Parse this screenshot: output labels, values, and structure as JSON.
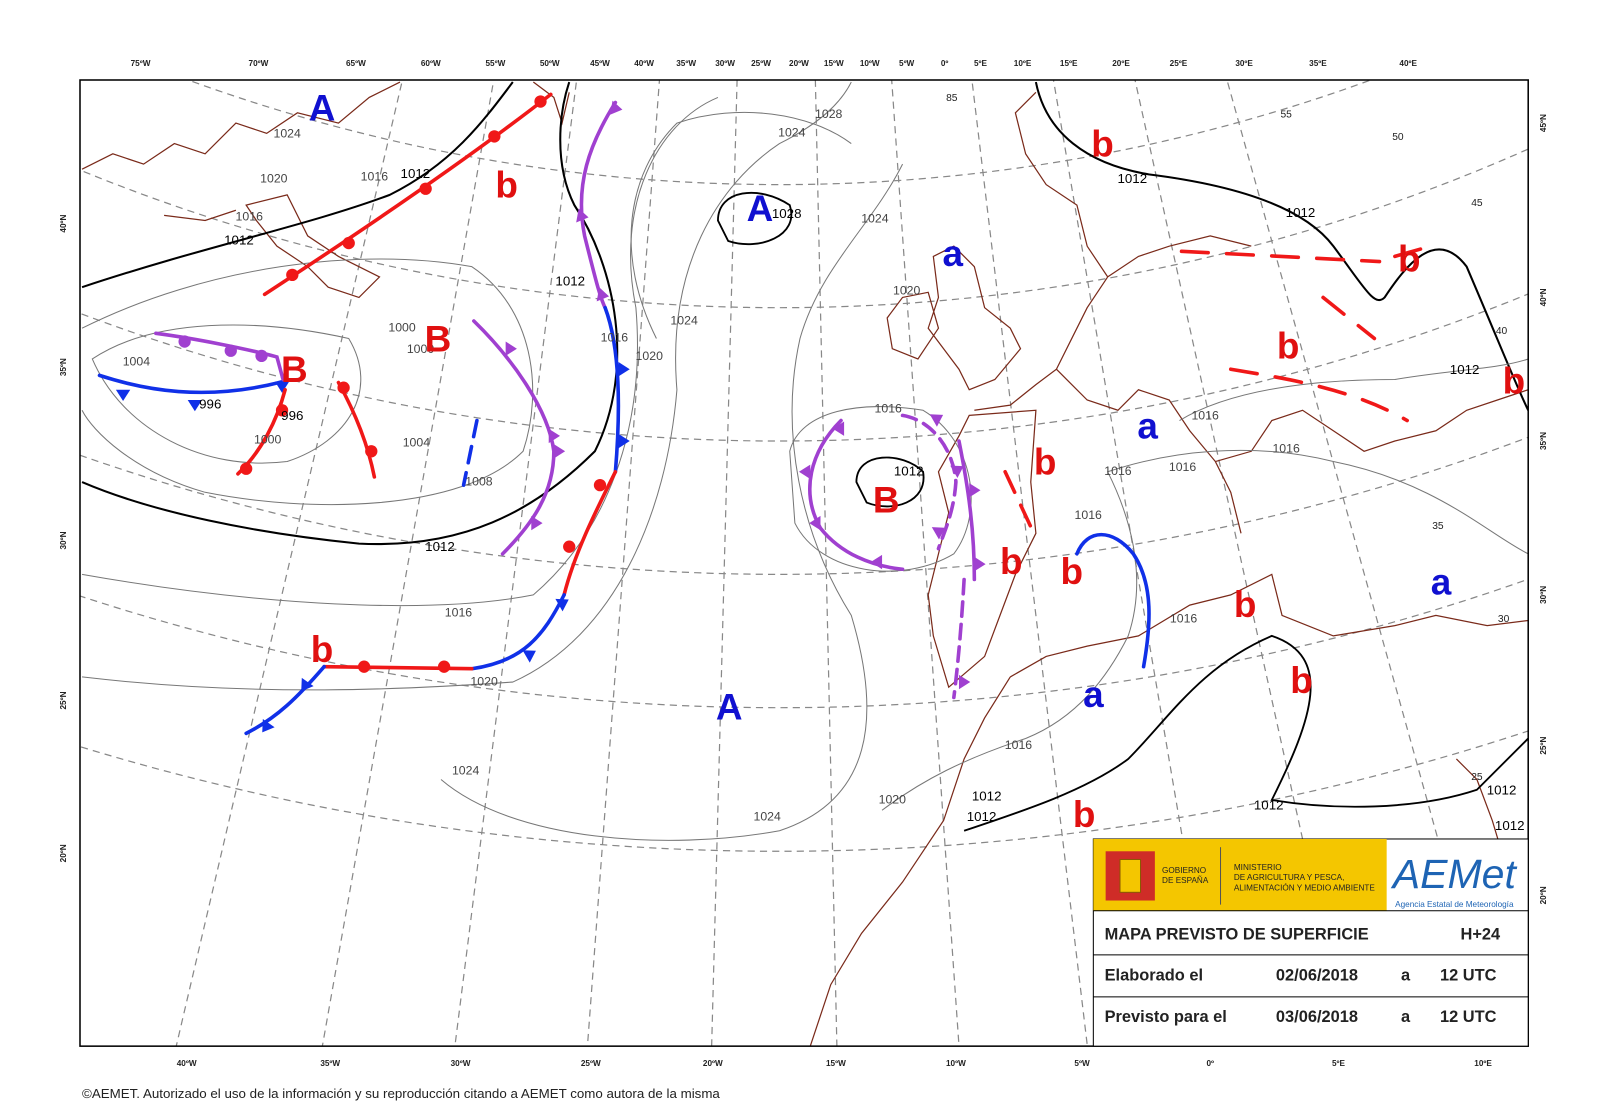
{
  "map": {
    "top_longitudes": [
      "75ºW",
      "70ºW",
      "65ºW",
      "60ºW",
      "55ºW",
      "50ºW",
      "45ºW",
      "40ºW",
      "35ºW",
      "30ºW",
      "25ºW",
      "20ºW",
      "15ºW",
      "10ºW",
      "5ºW",
      "0º",
      "5ºE",
      "10ºE",
      "15ºE",
      "20ºE",
      "25ºE",
      "30ºE",
      "35ºE",
      "40ºE"
    ],
    "bottom_longitudes": [
      "40ºW",
      "35ºW",
      "30ºW",
      "25ºW",
      "20ºW",
      "15ºW",
      "10ºW",
      "5ºW",
      "0º",
      "5ºE",
      "10ºE"
    ],
    "left_latitudes": [
      "40ºN",
      "35ºN",
      "30ºN",
      "25ºN",
      "20ºN"
    ],
    "right_latitudes": [
      "45ºN",
      "40ºN",
      "35ºN",
      "30ºN",
      "25ºN",
      "20ºN"
    ],
    "parallel_labels": [
      "85",
      "55",
      "50",
      "45",
      "40",
      "35",
      "30",
      "25"
    ],
    "pressure_centers": [
      {
        "label": "A",
        "color": "#1010d0"
      },
      {
        "label": "A",
        "color": "#1010d0"
      },
      {
        "label": "A",
        "color": "#1010d0"
      },
      {
        "label": "B",
        "color": "#e01010"
      },
      {
        "label": "B",
        "color": "#e01010"
      },
      {
        "label": "B",
        "color": "#e01010"
      },
      {
        "label": "b",
        "color": "#e01010"
      },
      {
        "label": "b",
        "color": "#e01010"
      },
      {
        "label": "b",
        "color": "#e01010"
      },
      {
        "label": "b",
        "color": "#e01010"
      },
      {
        "label": "b",
        "color": "#e01010"
      },
      {
        "label": "b",
        "color": "#e01010"
      },
      {
        "label": "b",
        "color": "#e01010"
      },
      {
        "label": "b",
        "color": "#e01010"
      },
      {
        "label": "b",
        "color": "#e01010"
      },
      {
        "label": "b",
        "color": "#e01010"
      },
      {
        "label": "b",
        "color": "#e01010"
      },
      {
        "label": "b",
        "color": "#e01010"
      },
      {
        "label": "a",
        "color": "#1010d0"
      },
      {
        "label": "a",
        "color": "#1010d0"
      },
      {
        "label": "a",
        "color": "#1010d0"
      },
      {
        "label": "a",
        "color": "#1010d0"
      }
    ],
    "isobar_labels": [
      "1028",
      "1024",
      "1020",
      "1016",
      "1012",
      "1016",
      "1012",
      "1012",
      "1000",
      "1004",
      "996",
      "996",
      "1000",
      "1004",
      "1008",
      "1012",
      "1016",
      "1020",
      "1024",
      "1024",
      "1020",
      "1012",
      "1012",
      "1016",
      "1016",
      "1016",
      "1016",
      "1016",
      "1016",
      "1016",
      "1012",
      "1012",
      "1012",
      "1012",
      "1012",
      "1012",
      "1024",
      "1024",
      "1020",
      "1016",
      "1020",
      "1016",
      "1012",
      "1028",
      "1024",
      "1000"
    ]
  },
  "info_box": {
    "government": [
      "GOBIERNO",
      "DE ESPAÑA"
    ],
    "ministry": [
      "MINISTERIO",
      "DE AGRICULTURA Y PESCA,",
      "ALIMENTACIÓN Y MEDIO AMBIENTE"
    ],
    "agency": "AEMet",
    "agency_full": "Agencia Estatal de Meteorología",
    "title": "MAPA PREVISTO DE SUPERFICIE",
    "step": "H+24",
    "rows": [
      [
        "Elaborado el",
        "02/06/2018",
        "a",
        "12 UTC"
      ],
      [
        "Previsto para el",
        "03/06/2018",
        "a",
        "12 UTC"
      ]
    ]
  },
  "footer": "©AEMET. Autorizado el uso de la información y su reproducción citando a AEMET como autora de la misma"
}
